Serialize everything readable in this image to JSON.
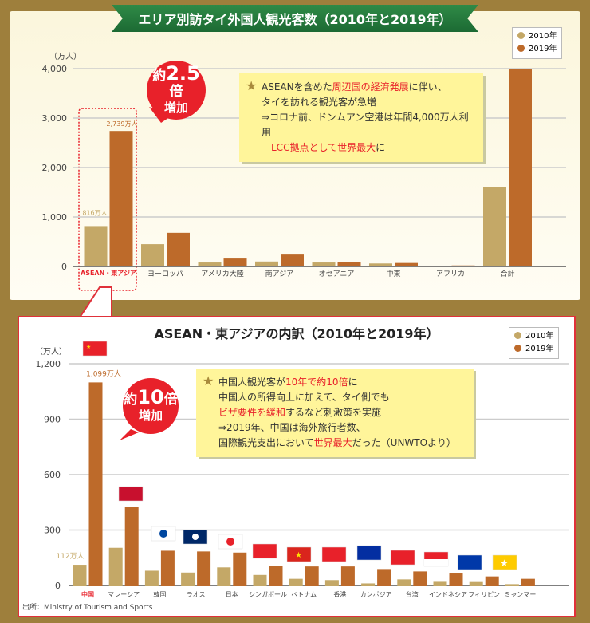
{
  "top": {
    "title": "エリア別訪タイ外国人観光客数（2010年と2019年）",
    "legend": [
      "2010年",
      "2019年"
    ],
    "bubble": {
      "prefix": "約",
      "number": "2.5",
      "suffix": "倍",
      "line2": "増加"
    },
    "note": {
      "lines": [
        [
          {
            "t": "ASEANを含めた"
          },
          {
            "t": "周辺国の経済発展",
            "red": true
          },
          {
            "t": "に伴い、"
          }
        ],
        [
          {
            "t": "タイを訪れる観光客が急増"
          }
        ],
        [
          {
            "t": "⇒コロナ前、ドンムアン空港は年間4,000万人利用"
          }
        ],
        [
          {
            "t": "　LCC拠点として世界最大",
            "red": true
          },
          {
            "t": "に"
          }
        ]
      ]
    },
    "annotations": {
      "asean_2010": "816万人",
      "asean_2019": "2,739万人"
    }
  },
  "bottom": {
    "title": "ASEAN・東アジアの内訳（2010年と2019年）",
    "legend": [
      "2010年",
      "2019年"
    ],
    "bubble": {
      "prefix": "約",
      "number": "10",
      "suffix": "倍",
      "line2": "増加"
    },
    "note": {
      "lines": [
        [
          {
            "t": "中国人観光客が"
          },
          {
            "t": "10年で約10倍",
            "red": true
          },
          {
            "t": "に"
          }
        ],
        [
          {
            "t": "中国人の所得向上に加えて、タイ側でも"
          }
        ],
        [
          {
            "t": "ビザ要件を緩和",
            "red": true
          },
          {
            "t": "するなど刺激策を実施"
          }
        ],
        [
          {
            "t": "⇒2019年、中国は海外旅行者数、"
          }
        ],
        [
          {
            "t": "国際観光支出において"
          },
          {
            "t": "世界最大",
            "red": true
          },
          {
            "t": "だった（UNWTOより）"
          }
        ]
      ]
    },
    "annotations": {
      "china_2010": "112万人",
      "china_2019": "1,099万人"
    },
    "source": "出所：Ministry of Tourism and Sports"
  },
  "colors": {
    "y2010": "#c4a867",
    "y2019": "#bd6a2a",
    "accent": "#e8212a"
  },
  "chart_data": [
    {
      "type": "bar",
      "title": "エリア別訪タイ外国人観光客数（2010年と2019年）",
      "ylabel": "（万人）",
      "ylim": [
        0,
        4000
      ],
      "yticks": [
        "0",
        "1,000",
        "2,000",
        "3,000",
        "4,000"
      ],
      "ytick_values": [
        0,
        1000,
        2000,
        3000,
        4000
      ],
      "grid": true,
      "legend": "top-right",
      "categories": [
        "ASEAN・東アジア",
        "ヨーロッパ",
        "アメリカ大陸",
        "南アジア",
        "オセアニア",
        "中東",
        "アフリカ",
        "合計"
      ],
      "series": [
        {
          "name": "2010年",
          "values": [
            816,
            450,
            80,
            100,
            80,
            60,
            10,
            1600
          ]
        },
        {
          "name": "2019年",
          "values": [
            2739,
            680,
            160,
            240,
            95,
            70,
            20,
            3990
          ]
        }
      ]
    },
    {
      "type": "bar",
      "title": "ASEAN・東アジアの内訳（2010年と2019年）",
      "ylabel": "（万人）",
      "ylim": [
        0,
        1200
      ],
      "yticks": [
        "0",
        "300",
        "600",
        "900",
        "1,200"
      ],
      "ytick_values": [
        0,
        300,
        600,
        900,
        1200
      ],
      "grid": true,
      "legend": "top-right",
      "categories": [
        "中国",
        "マレーシア",
        "韓国",
        "ラオス",
        "日本",
        "シンガポール",
        "ベトナム",
        "香港",
        "カンボジア",
        "台湾",
        "インドネシア",
        "フィリピン",
        "ミャンマー"
      ],
      "series": [
        {
          "name": "2010年",
          "values": [
            112,
            204,
            80,
            70,
            98,
            57,
            36,
            29,
            11,
            33,
            24,
            23,
            7
          ]
        },
        {
          "name": "2019年",
          "values": [
            1099,
            426,
            188,
            184,
            178,
            106,
            103,
            103,
            89,
            76,
            69,
            49,
            36
          ]
        }
      ]
    }
  ]
}
